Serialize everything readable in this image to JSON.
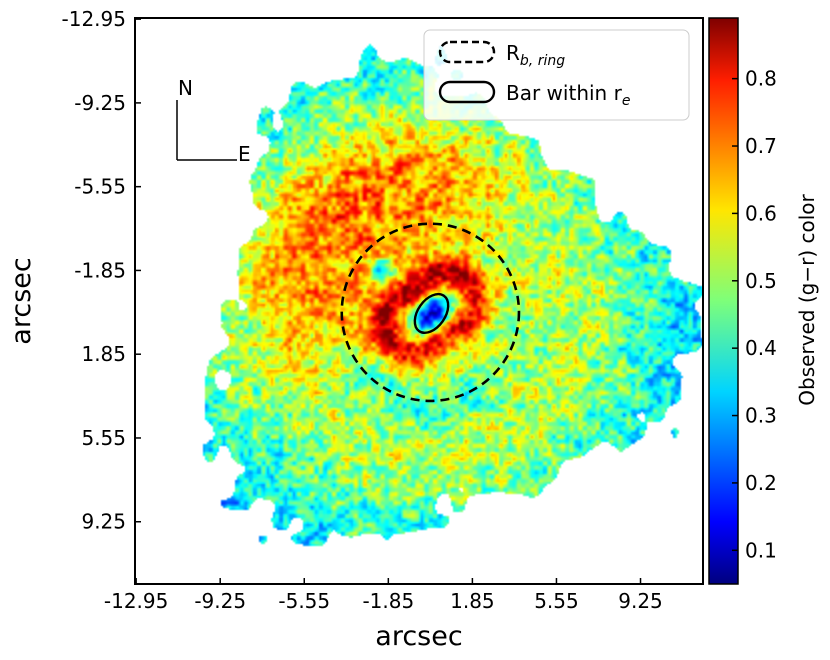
{
  "chart_data": {
    "type": "heatmap",
    "title": "",
    "xlabel": "arcsec",
    "ylabel": "arcsec",
    "x_ticks": [
      "-12.95",
      "-9.25",
      "-5.55",
      "-1.85",
      "1.85",
      "5.55",
      "9.25"
    ],
    "y_ticks": [
      "-12.95",
      "-9.25",
      "-5.55",
      "-1.85",
      "1.85",
      "5.55",
      "9.25"
    ],
    "x_tick_values": [
      -12.95,
      -9.25,
      -5.55,
      -1.85,
      1.85,
      5.55,
      9.25
    ],
    "y_tick_values": [
      -12.95,
      -9.25,
      -5.55,
      -1.85,
      1.85,
      5.55,
      9.25
    ],
    "xlim": [
      -13.0,
      12.0
    ],
    "ylim": [
      -13.0,
      12.0
    ],
    "colorbar": {
      "label": "Observed (g−r) color",
      "ticks": [
        "0.1",
        "0.2",
        "0.3",
        "0.4",
        "0.5",
        "0.6",
        "0.7",
        "0.8"
      ],
      "tick_values": [
        0.1,
        0.2,
        0.3,
        0.4,
        0.5,
        0.6,
        0.7,
        0.8
      ],
      "range": [
        0.05,
        0.89
      ],
      "colormap": "jet"
    },
    "legend": {
      "location": "top-right",
      "entries": [
        {
          "label": "R",
          "sub": "b, ring",
          "style": "dashed-ellipse"
        },
        {
          "label": "Bar within r",
          "sub": "e",
          "style": "solid-ellipse"
        }
      ]
    },
    "annotations": {
      "compass_north": "N",
      "compass_east": "E"
    },
    "features": {
      "galaxy_center": [
        0.0,
        0.0
      ],
      "ring_radius": 3.9,
      "bar_semi_major": 0.95,
      "bar_semi_minor": 0.6,
      "bar_angle_deg": -35
    },
    "colors": {
      "ring": "#000000",
      "bar": "#000000",
      "frame": "#000000"
    }
  }
}
